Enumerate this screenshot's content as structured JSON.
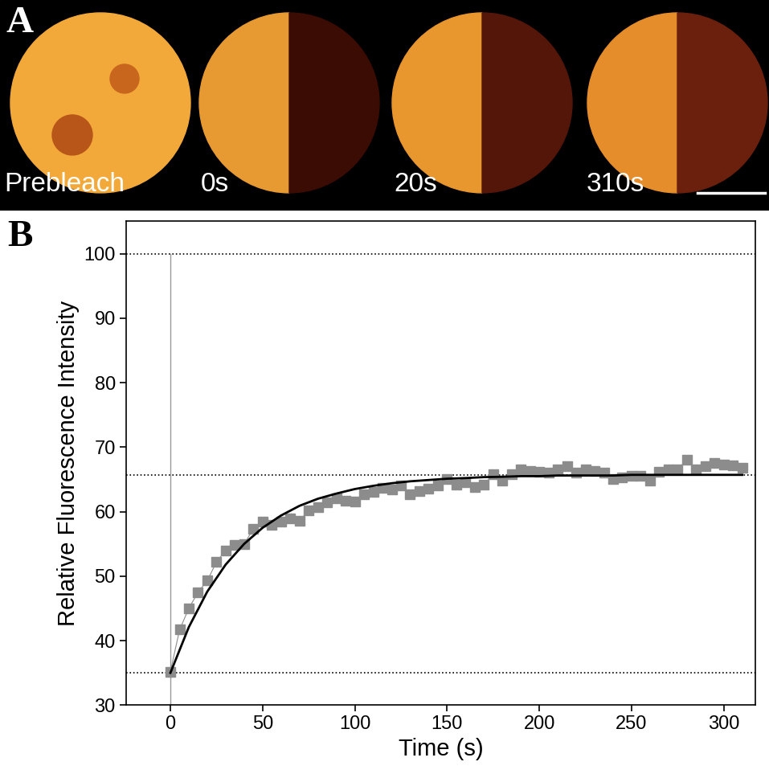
{
  "panels": {
    "A": {
      "label": "A",
      "image_labels": [
        "Prebleach",
        "0s",
        "20s",
        "310s"
      ]
    },
    "B": {
      "label": "B"
    }
  },
  "chart_data": {
    "type": "line",
    "xlabel": "Time (s)",
    "ylabel": "Relative Fluorescence Intensity",
    "xlim": [
      -24,
      317
    ],
    "ylim": [
      30,
      105
    ],
    "xticks": [
      0,
      50,
      100,
      150,
      200,
      250,
      300
    ],
    "yticks": [
      30,
      40,
      50,
      60,
      70,
      80,
      90,
      100
    ],
    "hlines": [
      100,
      65.7,
      35
    ],
    "vline": 0,
    "series": [
      {
        "type": "line",
        "marker": "square",
        "line_style": "solid",
        "color": "#8c8c8c",
        "x": [
          0,
          5,
          10,
          15,
          20,
          25,
          30,
          35,
          40,
          45,
          50,
          55,
          60,
          65,
          70,
          75,
          80,
          85,
          90,
          95,
          100,
          105,
          110,
          115,
          120,
          125,
          130,
          135,
          140,
          145,
          150,
          155,
          160,
          165,
          170,
          175,
          180,
          185,
          190,
          195,
          200,
          205,
          210,
          215,
          220,
          225,
          230,
          235,
          240,
          245,
          250,
          255,
          260,
          265,
          270,
          275,
          280,
          285,
          290,
          295,
          300,
          305,
          310
        ],
        "values": [
          35.2,
          41.7,
          45,
          47.5,
          49.3,
          52.2,
          54,
          54.8,
          55,
          57.3,
          58.5,
          58,
          58.5,
          59,
          58.6,
          60.2,
          60.7,
          61.5,
          62,
          61.7,
          61.6,
          62.7,
          63,
          63.7,
          63.4,
          64,
          62.7,
          63.2,
          63.5,
          64,
          65,
          64.2,
          64.5,
          63.8,
          64.2,
          65.8,
          64.8,
          65.8,
          66.5,
          66.3,
          66.2,
          66,
          66.5,
          67.1,
          66,
          66.5,
          66.3,
          66,
          65,
          65.3,
          65.5,
          65.5,
          64.8,
          66.2,
          66.5,
          66.6,
          68,
          66.5,
          67,
          67.5,
          67.3,
          67.2,
          66.8
        ]
      },
      {
        "type": "line",
        "line_style": "solid",
        "color": "#000000",
        "x": [
          0,
          10,
          20,
          30,
          40,
          50,
          60,
          70,
          80,
          90,
          100,
          110,
          120,
          130,
          140,
          150,
          160,
          170,
          180,
          190,
          200,
          210,
          220,
          230,
          240,
          250,
          260,
          270,
          280,
          290,
          300,
          310
        ],
        "values": [
          35.0,
          42.1,
          47.6,
          51.8,
          55.0,
          57.5,
          59.4,
          60.9,
          62.0,
          62.8,
          63.5,
          64.0,
          64.4,
          64.7,
          64.9,
          65.1,
          65.2,
          65.35,
          65.4,
          65.5,
          65.5,
          65.6,
          65.6,
          65.6,
          65.6,
          65.7,
          65.7,
          65.7,
          65.7,
          65.7,
          65.7,
          65.7
        ]
      }
    ]
  }
}
